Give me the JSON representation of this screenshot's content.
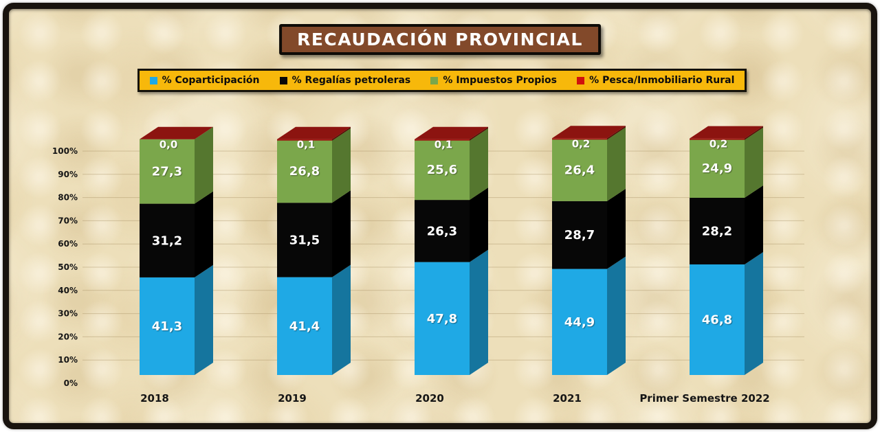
{
  "colors": {
    "page_bg": "#FFFFFF",
    "panel_bg": "#EDDFBA",
    "frame_border": "#18130E",
    "grid": "#A58C5F",
    "title_bg": "#82492A",
    "title_text": "#FFFFFF",
    "legend_bg": "#F7B80B",
    "legend_border": "#15120B",
    "legend_text": "#0D0D0D",
    "axis_text": "#151515",
    "value_text": "#FFFFFF"
  },
  "chart_data": {
    "type": "bar",
    "stacked": true,
    "projection": "3d",
    "title": "RECAUDACIÓN PROVINCIAL",
    "legend_position": "top",
    "grid": true,
    "ylim": [
      0,
      100
    ],
    "y_ticks": [
      "0%",
      "10%",
      "20%",
      "30%",
      "40%",
      "50%",
      "60%",
      "70%",
      "80%",
      "90%",
      "100%"
    ],
    "categories": [
      "2018",
      "2019",
      "2020",
      "2021",
      "Primer Semestre 2022"
    ],
    "series": [
      {
        "name": "% Coparticipación",
        "values": [
          41.3,
          41.4,
          47.8,
          44.9,
          46.8
        ],
        "labels": [
          "41,3",
          "41,4",
          "47,8",
          "44,9",
          "46,8"
        ],
        "front": "#1FA9E5",
        "side": "#15759E"
      },
      {
        "name": "% Regalías petroleras",
        "values": [
          31.2,
          31.5,
          26.3,
          28.7,
          28.2
        ],
        "labels": [
          "31,2",
          "31,5",
          "26,3",
          "28,7",
          "28,2"
        ],
        "front": "#070707",
        "side": "#000000"
      },
      {
        "name": "% Impuestos Propios",
        "values": [
          27.3,
          26.8,
          25.6,
          26.4,
          24.9
        ],
        "labels": [
          "27,3",
          "26,8",
          "25,6",
          "26,4",
          "24,9"
        ],
        "front": "#7BA74B",
        "side": "#55772F"
      },
      {
        "name": "% Pesca/Inmobiliario Rural",
        "values": [
          0.0,
          0.1,
          0.1,
          0.2,
          0.2
        ],
        "labels": [
          "0,0",
          "0,1",
          "0,1",
          "0,2",
          "0,2"
        ],
        "front": "#9E1511",
        "side": "#5A0B08",
        "top": "#8C1410",
        "legend": "#D0120D"
      }
    ]
  }
}
